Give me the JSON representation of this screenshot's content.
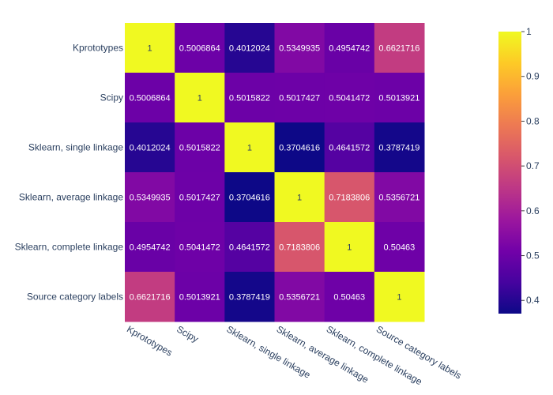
{
  "chart_data": {
    "type": "heatmap",
    "row_labels": [
      "Kprototypes",
      "Scipy",
      "Sklearn, single linkage",
      "Sklearn, average linkage",
      "Sklearn, complete linkage",
      "Source category labels"
    ],
    "col_labels": [
      "Kprototypes",
      "Scipy",
      "Sklearn, single linkage",
      "Sklearn, average linkage",
      "Sklearn, complete linkage",
      "Source category labels"
    ],
    "values": [
      [
        1,
        0.5006864,
        0.4012024,
        0.5349935,
        0.4954742,
        0.6621716
      ],
      [
        0.5006864,
        1,
        0.5015822,
        0.5017427,
        0.5041472,
        0.5013921
      ],
      [
        0.4012024,
        0.5015822,
        1,
        0.3704616,
        0.4641572,
        0.3787419
      ],
      [
        0.5349935,
        0.5017427,
        0.3704616,
        1,
        0.7183806,
        0.5356721
      ],
      [
        0.4954742,
        0.5041472,
        0.4641572,
        0.7183806,
        1,
        0.50463
      ],
      [
        0.6621716,
        0.5013921,
        0.3787419,
        0.5356721,
        0.50463,
        1
      ]
    ],
    "cell_labels": [
      [
        "1",
        "0.5006864",
        "0.4012024",
        "0.5349935",
        "0.4954742",
        "0.6621716"
      ],
      [
        "0.5006864",
        "1",
        "0.5015822",
        "0.5017427",
        "0.5041472",
        "0.5013921"
      ],
      [
        "0.4012024",
        "0.5015822",
        "1",
        "0.3704616",
        "0.4641572",
        "0.3787419"
      ],
      [
        "0.5349935",
        "0.5017427",
        "0.3704616",
        "1",
        "0.7183806",
        "0.5356721"
      ],
      [
        "0.4954742",
        "0.5041472",
        "0.4641572",
        "0.7183806",
        "1",
        "0.50463"
      ],
      [
        "0.6621716",
        "0.5013921",
        "0.3787419",
        "0.5356721",
        "0.50463",
        "1"
      ]
    ],
    "zmin": 0.3704616,
    "zmax": 1,
    "colorscale": "plasma",
    "colorbar_ticks": [
      "0.4",
      "0.5",
      "0.6",
      "0.7",
      "0.8",
      "0.9",
      "1"
    ],
    "colorbar_tick_values": [
      0.4,
      0.5,
      0.6,
      0.7,
      0.8,
      0.9,
      1.0
    ],
    "title": "",
    "xlabel": "",
    "ylabel": ""
  },
  "colors": {
    "plasma": [
      "#0d0887",
      "#46039f",
      "#7201a8",
      "#9c179e",
      "#bd3786",
      "#d8576b",
      "#ed7953",
      "#fb9f3a",
      "#fdca26",
      "#f0f921"
    ],
    "axis_text": "#2a3f5f"
  }
}
